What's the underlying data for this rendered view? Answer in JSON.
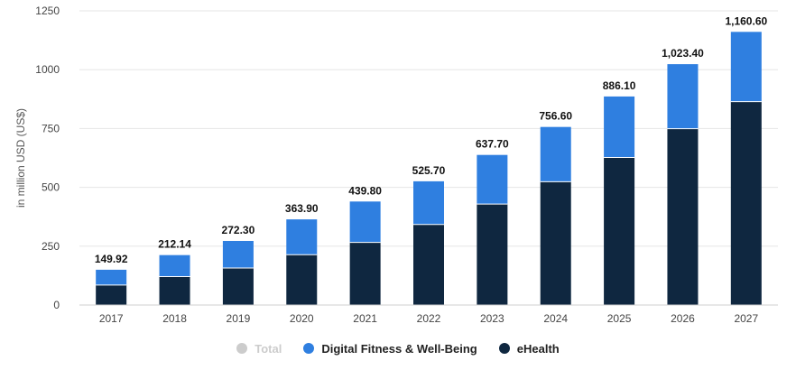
{
  "chart_data": {
    "type": "bar",
    "stacked": true,
    "categories": [
      "2017",
      "2018",
      "2019",
      "2020",
      "2021",
      "2022",
      "2023",
      "2024",
      "2025",
      "2026",
      "2027"
    ],
    "series": [
      {
        "name": "eHealth",
        "color": "#0f2740",
        "values": [
          85,
          121,
          157,
          214,
          266,
          342,
          429,
          524,
          627,
          749,
          864
        ]
      },
      {
        "name": "Digital Fitness & Well-Being",
        "color": "#2f7fe0",
        "values": [
          64.92,
          91.14,
          115.3,
          149.9,
          173.8,
          183.7,
          208.7,
          232.6,
          259.1,
          274.4,
          296.6
        ]
      }
    ],
    "totals": [
      "149.92",
      "212.14",
      "272.30",
      "363.90",
      "439.80",
      "525.70",
      "637.70",
      "756.60",
      "886.10",
      "1,023.40",
      "1,160.60"
    ],
    "total_values": [
      149.92,
      212.14,
      272.3,
      363.9,
      439.8,
      525.7,
      637.7,
      756.6,
      886.1,
      1023.4,
      1160.6
    ],
    "ylabel": "in million USD (US$)",
    "ylim": [
      0,
      1250
    ],
    "yticks": [
      0,
      250,
      500,
      750,
      1000,
      1250
    ],
    "grid": true,
    "legend_position": "bottom"
  },
  "legend": [
    {
      "name": "Total",
      "color": "#cccccc",
      "active": false
    },
    {
      "name": "Digital Fitness & Well-Being",
      "color": "#2f7fe0",
      "active": true
    },
    {
      "name": "eHealth",
      "color": "#0f2740",
      "active": true
    }
  ]
}
